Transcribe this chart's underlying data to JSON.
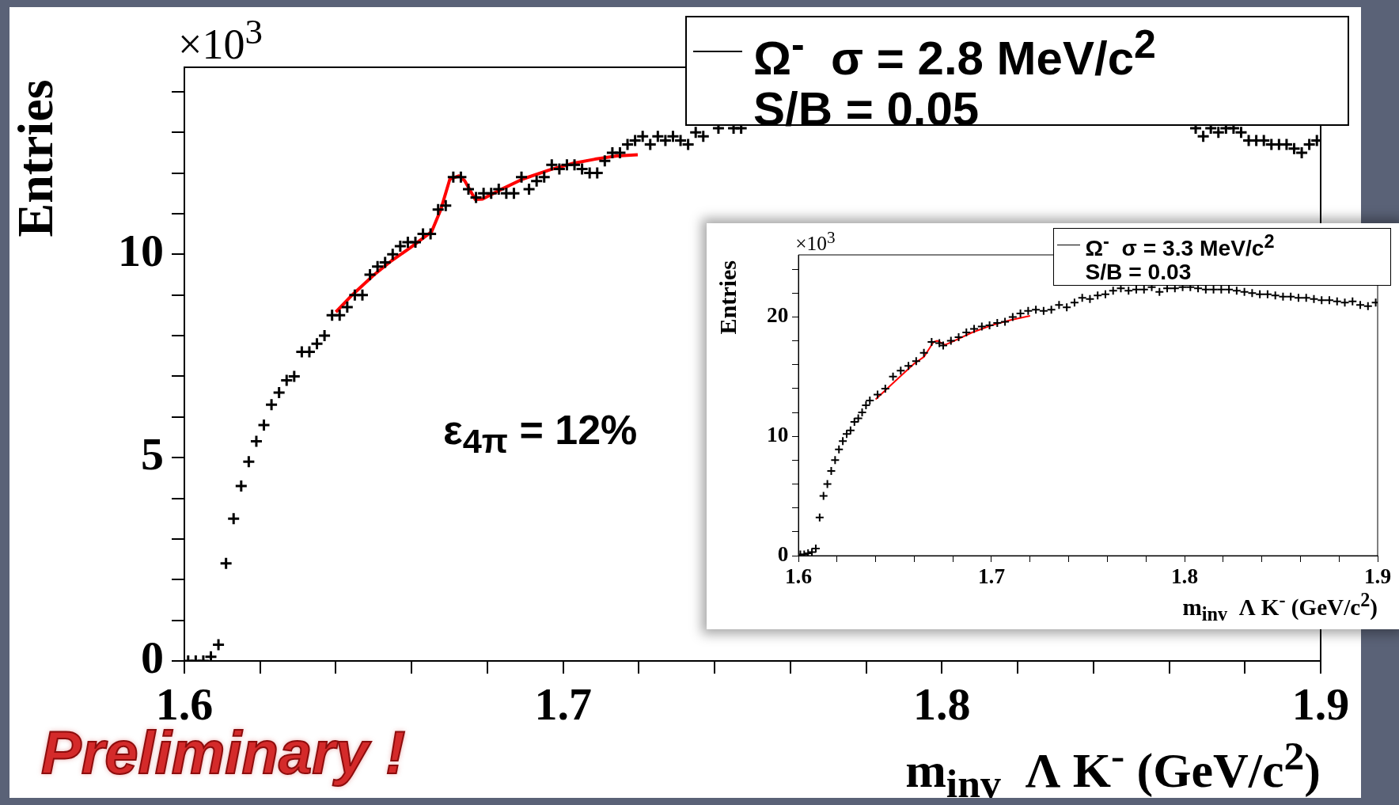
{
  "chart_data": [
    {
      "type": "scatter",
      "ylabel": "Entries",
      "xlabel": "m$_{inv}$  Λ K$^{-}$ (GeV/c$^{2}$)",
      "annotations": [
        "×10$^{3}$",
        "S/B = 0.05",
        "ε$_{4π}$ = 12%",
        "Preliminary !"
      ],
      "legend": "top right",
      "xlim": [
        1.6,
        1.9
      ],
      "xticks": [
        1.6,
        {
          "value": 1.62,
          "label": null
        },
        {
          "value": 1.64,
          "label": null
        },
        {
          "value": 1.66,
          "label": null
        },
        {
          "value": 1.68,
          "label": null
        },
        1.7,
        {
          "value": 1.72,
          "label": null
        },
        {
          "value": 1.74,
          "label": null
        },
        {
          "value": 1.76,
          "label": null
        },
        {
          "value": 1.78,
          "label": null
        },
        1.8,
        {
          "value": 1.82,
          "label": null
        },
        {
          "value": 1.84,
          "label": null
        },
        {
          "value": 1.86,
          "label": null
        },
        {
          "value": 1.88,
          "label": null
        },
        1.9
      ],
      "ylim": [
        0,
        14.6
      ],
      "yticks": [
        0,
        {
          "value": 1,
          "label": null
        },
        {
          "value": 2,
          "label": null
        },
        {
          "value": 3,
          "label": null
        },
        {
          "value": 4,
          "label": null
        },
        5,
        {
          "value": 6,
          "label": null
        },
        {
          "value": 7,
          "label": null
        },
        {
          "value": 8,
          "label": null
        },
        {
          "value": 9,
          "label": null
        },
        10,
        {
          "value": 11,
          "label": null
        },
        {
          "value": 12,
          "label": null
        },
        {
          "value": 13,
          "label": null
        },
        {
          "value": 14,
          "label": null
        }
      ],
      "series": [
        {
          "marker": "cross",
          "name": "Ω$^{-}$  σ = 2.8 MeV/c$^{2}$",
          "color": "#000000",
          "x": [
            1.601,
            1.603,
            1.605,
            1.607,
            1.609,
            1.611,
            1.613,
            1.615,
            1.617,
            1.619,
            1.621,
            1.623,
            1.625,
            1.627,
            1.629,
            1.631,
            1.633,
            1.635,
            1.637,
            1.639,
            1.641,
            1.643,
            1.645,
            1.647,
            1.649,
            1.651,
            1.653,
            1.655,
            1.657,
            1.659,
            1.661,
            1.663,
            1.665,
            1.667,
            1.669,
            1.671,
            1.673,
            1.675,
            1.677,
            1.679,
            1.681,
            1.683,
            1.685,
            1.687,
            1.689,
            1.691,
            1.693,
            1.695,
            1.697,
            1.699,
            1.701,
            1.703,
            1.705,
            1.707,
            1.709,
            1.711,
            1.713,
            1.715,
            1.717,
            1.719,
            1.721,
            1.723,
            1.725,
            1.727,
            1.729,
            1.731,
            1.733,
            1.735,
            1.737,
            1.741,
            1.745,
            1.747,
            1.867,
            1.869,
            1.871,
            1.873,
            1.875,
            1.877,
            1.879,
            1.881,
            1.883,
            1.885,
            1.887,
            1.889,
            1.891,
            1.893,
            1.895,
            1.897,
            1.899
          ],
          "values": [
            0.0,
            0.0,
            0.0,
            0.1,
            0.4,
            2.4,
            3.5,
            4.3,
            4.9,
            5.4,
            5.8,
            6.3,
            6.6,
            6.9,
            7.0,
            7.6,
            7.6,
            7.8,
            8.0,
            8.5,
            8.5,
            8.7,
            9.0,
            9.0,
            9.5,
            9.7,
            9.8,
            10.0,
            10.2,
            10.3,
            10.3,
            10.5,
            10.5,
            11.1,
            11.2,
            11.9,
            11.9,
            11.6,
            11.4,
            11.5,
            11.5,
            11.6,
            11.5,
            11.5,
            11.9,
            11.6,
            11.8,
            11.9,
            12.2,
            12.1,
            12.2,
            12.2,
            12.1,
            12.0,
            12.0,
            12.3,
            12.5,
            12.5,
            12.7,
            12.8,
            12.9,
            12.7,
            12.9,
            12.8,
            12.9,
            12.8,
            12.7,
            13.0,
            12.9,
            13.1,
            13.1,
            13.1,
            13.1,
            12.9,
            13.1,
            13.0,
            13.1,
            13.1,
            13.0,
            12.8,
            12.8,
            12.8,
            12.7,
            12.7,
            12.7,
            12.6,
            12.5,
            12.7,
            12.8
          ]
        },
        {
          "type": "line",
          "marker": "none",
          "color": "#ff0000",
          "x": [
            1.64,
            1.6443,
            1.65,
            1.6548,
            1.6596,
            1.6653,
            1.6677,
            1.6701,
            1.6725,
            1.674,
            1.6768,
            1.6787,
            1.6835,
            1.6893,
            1.6969,
            1.7027,
            1.7084,
            1.7142,
            1.7197
          ],
          "values": [
            8.58,
            9.0,
            9.49,
            9.85,
            10.16,
            10.56,
            11.1,
            11.85,
            11.93,
            11.81,
            11.35,
            11.36,
            11.59,
            11.85,
            12.09,
            12.24,
            12.34,
            12.42,
            12.45
          ]
        }
      ]
    },
    {
      "type": "scatter",
      "ylabel": "Entries",
      "xlabel": "m$_{inv}$  Λ K$^{-}$ (GeV/c$^{2}$)",
      "annotations": [
        "×10$^{3}$",
        "S/B = 0.03"
      ],
      "legend": "top right",
      "xlim": [
        1.6,
        1.9
      ],
      "xticks": [
        1.6,
        {
          "value": 1.62,
          "label": null
        },
        {
          "value": 1.64,
          "label": null
        },
        {
          "value": 1.66,
          "label": null
        },
        {
          "value": 1.68,
          "label": null
        },
        1.7,
        {
          "value": 1.72,
          "label": null
        },
        {
          "value": 1.74,
          "label": null
        },
        {
          "value": 1.76,
          "label": null
        },
        {
          "value": 1.78,
          "label": null
        },
        1.8,
        {
          "value": 1.82,
          "label": null
        },
        {
          "value": 1.84,
          "label": null
        },
        {
          "value": 1.86,
          "label": null
        },
        {
          "value": 1.88,
          "label": null
        },
        1.9
      ],
      "ylim": [
        0,
        25.2
      ],
      "yticks": [
        0,
        {
          "value": 2,
          "label": null
        },
        {
          "value": 4,
          "label": null
        },
        {
          "value": 6,
          "label": null
        },
        {
          "value": 8,
          "label": null
        },
        10,
        {
          "value": 12,
          "label": null
        },
        {
          "value": 14,
          "label": null
        },
        {
          "value": 16,
          "label": null
        },
        {
          "value": 18,
          "label": null
        },
        20,
        {
          "value": 22,
          "label": null
        },
        {
          "value": 24,
          "label": null
        }
      ],
      "series": [
        {
          "marker": "cross",
          "name": "Ω$^{-}$  σ = 3.3 MeV/c$^{2}$",
          "color": "#000000",
          "x": [
            1.601,
            1.603,
            1.605,
            1.607,
            1.609,
            1.611,
            1.613,
            1.615,
            1.617,
            1.619,
            1.621,
            1.623,
            1.625,
            1.627,
            1.629,
            1.631,
            1.633,
            1.635,
            1.637,
            1.641,
            1.645,
            1.649,
            1.653,
            1.657,
            1.661,
            1.665,
            1.669,
            1.673,
            1.675,
            1.679,
            1.683,
            1.687,
            1.691,
            1.695,
            1.699,
            1.703,
            1.707,
            1.711,
            1.715,
            1.719,
            1.723,
            1.727,
            1.731,
            1.735,
            1.739,
            1.743,
            1.747,
            1.751,
            1.755,
            1.759,
            1.763,
            1.767,
            1.771,
            1.775,
            1.779,
            1.783,
            1.787,
            1.791,
            1.795,
            1.799,
            1.803,
            1.807,
            1.811,
            1.815,
            1.819,
            1.823,
            1.827,
            1.831,
            1.835,
            1.839,
            1.843,
            1.847,
            1.851,
            1.855,
            1.859,
            1.863,
            1.867,
            1.871,
            1.875,
            1.879,
            1.883,
            1.887,
            1.891,
            1.895,
            1.899
          ],
          "values": [
            0.1,
            0.1,
            0.2,
            0.3,
            0.6,
            3.2,
            5.0,
            6.0,
            7.1,
            8.0,
            8.9,
            9.6,
            10.2,
            10.5,
            11.2,
            11.5,
            12.0,
            12.6,
            13.0,
            13.5,
            14.0,
            15.0,
            15.5,
            15.9,
            16.3,
            17.0,
            17.9,
            17.8,
            17.6,
            18.0,
            18.3,
            18.7,
            19.0,
            19.2,
            19.3,
            19.5,
            19.6,
            20.0,
            20.3,
            20.5,
            20.6,
            20.5,
            20.6,
            21.0,
            20.8,
            21.2,
            21.6,
            21.5,
            21.8,
            21.9,
            22.2,
            22.4,
            22.2,
            22.3,
            22.3,
            22.5,
            22.1,
            22.4,
            22.4,
            22.5,
            22.5,
            22.4,
            22.3,
            22.3,
            22.3,
            22.3,
            22.2,
            22.1,
            22.0,
            21.9,
            21.9,
            21.8,
            21.7,
            21.7,
            21.6,
            21.6,
            21.5,
            21.4,
            21.4,
            21.3,
            21.2,
            21.3,
            21.0,
            20.9,
            21.2
          ]
        },
        {
          "type": "line",
          "marker": "none",
          "color": "#ff0000",
          "x": [
            1.64,
            1.65,
            1.66,
            1.665,
            1.67,
            1.672,
            1.676,
            1.68,
            1.69,
            1.7,
            1.71,
            1.72
          ],
          "values": [
            13.1,
            14.6,
            16.1,
            16.65,
            17.9,
            18.0,
            17.66,
            17.95,
            18.7,
            19.3,
            19.74,
            20.1
          ]
        }
      ]
    }
  ]
}
